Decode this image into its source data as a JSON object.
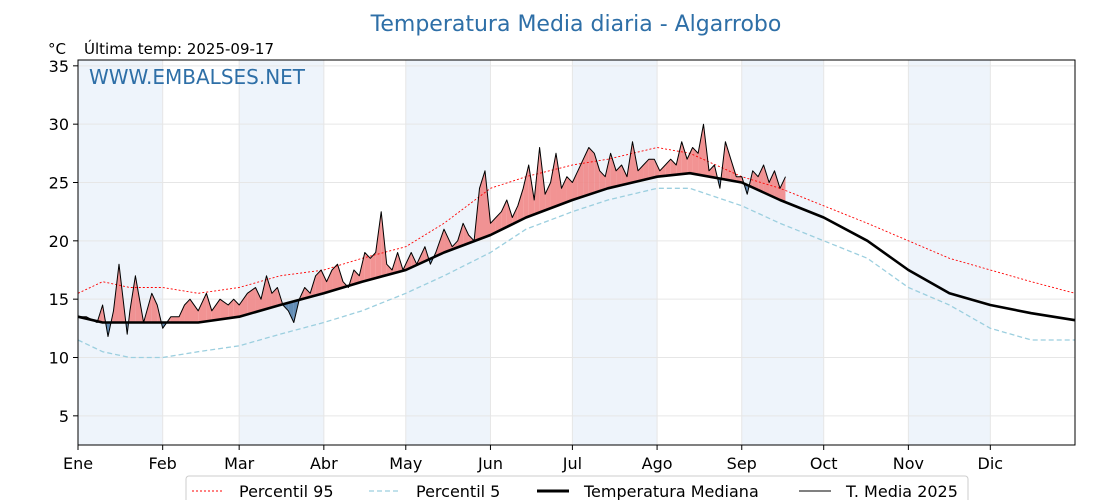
{
  "chart_data": {
    "type": "line",
    "title": "Temperatura Media diaria - Algarrobo",
    "unit": "°C",
    "subtitle": "Última temp: 2025-09-17",
    "watermark": "WWW.EMBALSES.NET",
    "ylim": [
      2.5,
      35.5
    ],
    "yticks": [
      5,
      10,
      15,
      20,
      25,
      30,
      35
    ],
    "months": [
      "Ene",
      "Feb",
      "Mar",
      "Abr",
      "May",
      "Jun",
      "Jul",
      "Ago",
      "Sep",
      "Oct",
      "Nov",
      "Dic"
    ],
    "month_start_days": [
      1,
      32,
      60,
      91,
      121,
      152,
      182,
      213,
      244,
      274,
      305,
      335
    ],
    "day_range": [
      1,
      366
    ],
    "grid": true,
    "legend_position": "bottom",
    "colors": {
      "p95": "#ff0000",
      "p5": "#9ccfdf",
      "median": "#000000",
      "year": "#000000",
      "above_fill": "#f08080",
      "below_fill": "#4a7aa8",
      "title": "#2e6fa7",
      "alt_month_band": "#eef4fb"
    },
    "series": [
      {
        "name": "Percentil 95",
        "key": "p95",
        "x": [
          1,
          10,
          20,
          32,
          45,
          60,
          75,
          91,
          105,
          121,
          135,
          152,
          165,
          182,
          195,
          213,
          225,
          244,
          258,
          274,
          290,
          305,
          320,
          335,
          350,
          366
        ],
        "values": [
          15.5,
          16.5,
          16.0,
          16.0,
          15.5,
          16.0,
          17.0,
          17.5,
          18.5,
          19.5,
          21.5,
          24.5,
          25.5,
          26.5,
          27.0,
          28.0,
          27.5,
          25.5,
          24.5,
          23.0,
          21.5,
          20.0,
          18.5,
          17.5,
          16.5,
          15.5
        ]
      },
      {
        "name": "Percentil 5",
        "key": "p5",
        "x": [
          1,
          10,
          20,
          32,
          45,
          60,
          75,
          91,
          105,
          121,
          135,
          152,
          165,
          182,
          195,
          213,
          225,
          244,
          258,
          274,
          290,
          305,
          320,
          335,
          350,
          366
        ],
        "values": [
          11.5,
          10.5,
          10.0,
          10.0,
          10.5,
          11.0,
          12.0,
          13.0,
          14.0,
          15.5,
          17.0,
          19.0,
          21.0,
          22.5,
          23.5,
          24.5,
          24.5,
          23.0,
          21.5,
          20.0,
          18.5,
          16.0,
          14.5,
          12.5,
          11.5,
          11.5
        ]
      },
      {
        "name": "Temperatura Mediana",
        "key": "median",
        "x": [
          1,
          10,
          20,
          32,
          45,
          60,
          75,
          91,
          105,
          121,
          135,
          152,
          165,
          182,
          195,
          213,
          225,
          244,
          258,
          274,
          290,
          305,
          320,
          335,
          350,
          366
        ],
        "values": [
          13.5,
          13.0,
          13.0,
          13.0,
          13.0,
          13.5,
          14.5,
          15.5,
          16.5,
          17.5,
          19.0,
          20.5,
          22.0,
          23.5,
          24.5,
          25.5,
          25.8,
          25.0,
          23.5,
          22.0,
          20.0,
          17.5,
          15.5,
          14.5,
          13.8,
          13.2
        ]
      },
      {
        "name": "T. Media 2025",
        "key": "year",
        "x": [
          1,
          4,
          8,
          10,
          12,
          14,
          16,
          19,
          20,
          22,
          25,
          28,
          30,
          32,
          35,
          38,
          40,
          42,
          45,
          48,
          50,
          53,
          56,
          58,
          60,
          63,
          66,
          68,
          70,
          72,
          74,
          76,
          78,
          80,
          82,
          84,
          86,
          88,
          90,
          92,
          94,
          96,
          98,
          100,
          102,
          104,
          106,
          108,
          110,
          112,
          114,
          116,
          118,
          120,
          123,
          125,
          128,
          130,
          132,
          135,
          138,
          140,
          142,
          144,
          146,
          148,
          150,
          152,
          154,
          156,
          158,
          160,
          162,
          164,
          166,
          168,
          170,
          172,
          174,
          176,
          178,
          180,
          182,
          184,
          186,
          188,
          190,
          192,
          194,
          196,
          198,
          200,
          202,
          204,
          206,
          208,
          210,
          212,
          214,
          216,
          218,
          220,
          222,
          224,
          226,
          228,
          230,
          232,
          234,
          236,
          238,
          240,
          242,
          244,
          246,
          248,
          250,
          252,
          254,
          256,
          258,
          260
        ],
        "values": [
          13.5,
          13.5,
          13.0,
          14.5,
          11.8,
          14.0,
          18.0,
          12.0,
          14.0,
          17.0,
          13.0,
          15.5,
          14.5,
          12.5,
          13.5,
          13.5,
          14.5,
          15.0,
          14.0,
          15.5,
          14.0,
          15.0,
          14.5,
          15.0,
          14.5,
          15.5,
          16.0,
          15.0,
          17.0,
          15.5,
          16.0,
          14.5,
          14.0,
          13.0,
          15.0,
          16.0,
          15.5,
          17.0,
          17.5,
          16.5,
          17.5,
          18.0,
          16.5,
          16.0,
          17.5,
          17.0,
          19.0,
          18.5,
          19.0,
          22.5,
          18.0,
          17.5,
          19.0,
          17.5,
          19.0,
          18.0,
          19.5,
          18.0,
          19.0,
          21.0,
          19.5,
          20.0,
          21.5,
          20.5,
          20.0,
          24.5,
          26.0,
          21.5,
          22.0,
          22.5,
          23.5,
          22.0,
          23.0,
          24.5,
          26.5,
          23.5,
          28.0,
          24.0,
          25.0,
          27.5,
          24.5,
          25.5,
          25.0,
          26.0,
          27.0,
          28.0,
          27.5,
          26.0,
          25.5,
          27.5,
          26.0,
          26.5,
          25.5,
          28.5,
          26.0,
          26.5,
          27.0,
          27.0,
          26.0,
          26.5,
          27.0,
          26.5,
          28.5,
          27.0,
          28.0,
          27.5,
          30.0,
          26.0,
          26.5,
          24.5,
          28.5,
          27.0,
          25.5,
          25.5,
          24.0,
          26.0,
          25.5,
          26.5,
          25.0,
          26.0,
          24.5,
          25.5
        ]
      }
    ],
    "legend": [
      "Percentil 95",
      "Percentil 5",
      "Temperatura Mediana",
      "T. Media 2025"
    ]
  }
}
